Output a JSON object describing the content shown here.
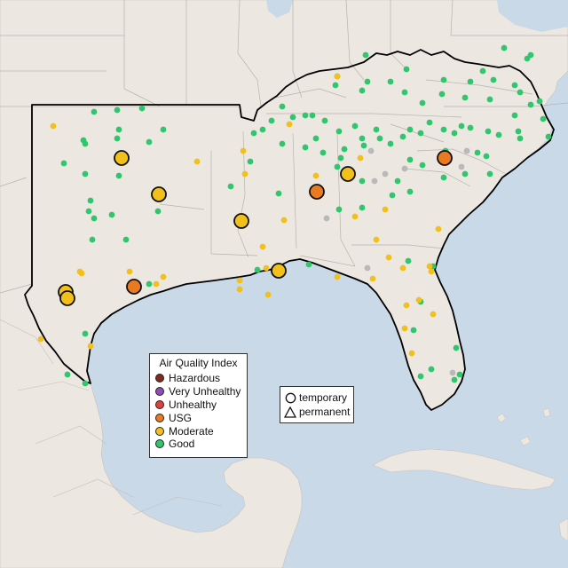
{
  "legend_aqi": {
    "title": "Air Quality Index",
    "items": [
      {
        "label": "Hazardous",
        "color": "#7e2a1e"
      },
      {
        "label": "Very Unhealthy",
        "color": "#8e4cb8"
      },
      {
        "label": "Unhealthy",
        "color": "#e2403a"
      },
      {
        "label": "USG",
        "color": "#ea7a22"
      },
      {
        "label": "Moderate",
        "color": "#f2c01a"
      },
      {
        "label": "Good",
        "color": "#2fc66e"
      }
    ]
  },
  "legend_site": {
    "items": [
      {
        "label": "temporary",
        "icon": "circle-icon"
      },
      {
        "label": "permanent",
        "icon": "triangle-icon"
      }
    ]
  },
  "colors": {
    "water": "#c9d9e8",
    "land": "#ece7e1",
    "border": "#b8b3ad",
    "region_outline": "#000000",
    "no_data": "#b9b9b9"
  }
}
